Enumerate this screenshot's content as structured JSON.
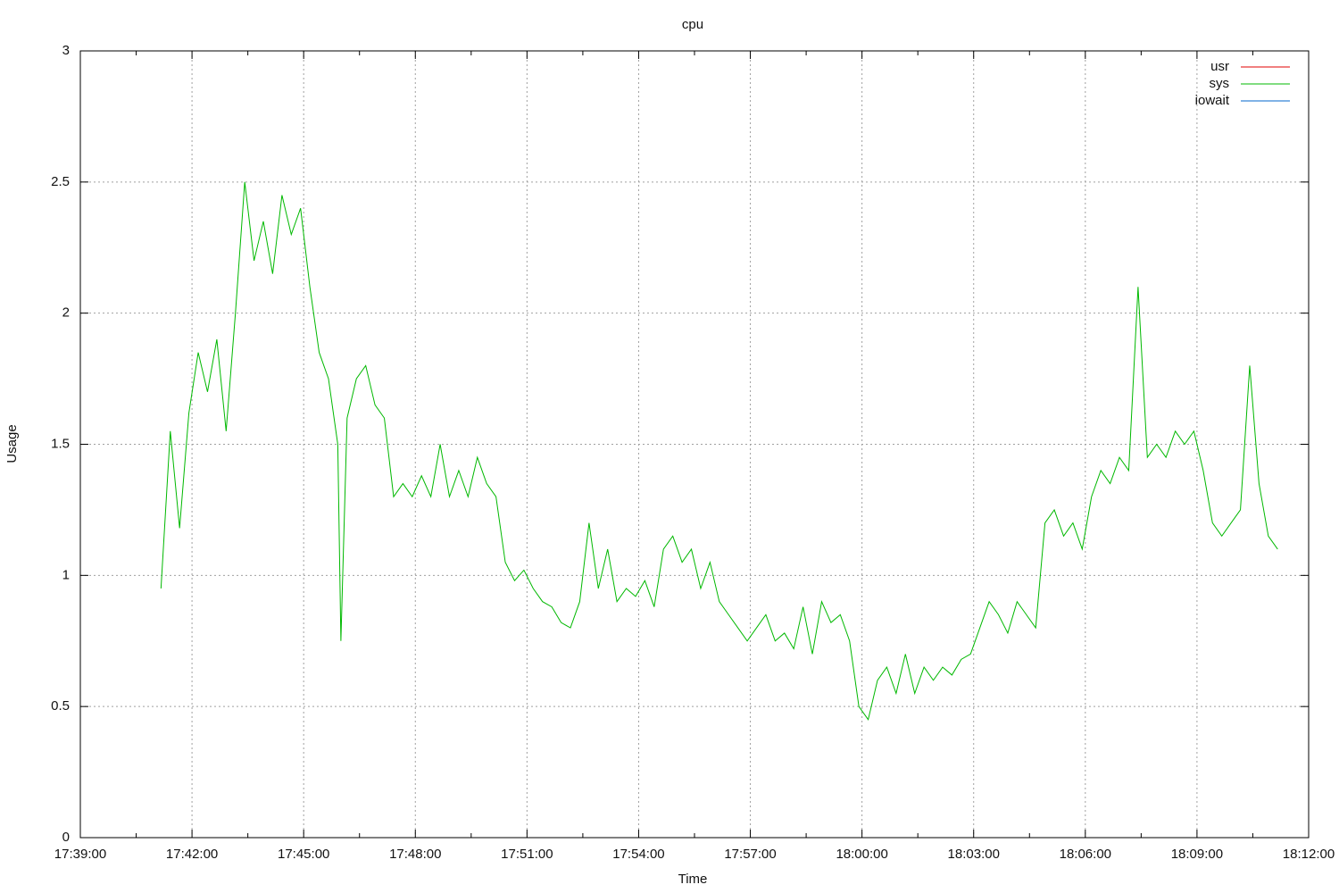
{
  "chart_data": {
    "type": "line",
    "title": "cpu",
    "x_label": "Time",
    "y_label": "Usage",
    "x": [
      "17:41:10",
      "17:41:25",
      "17:41:40",
      "17:41:55",
      "17:42:10",
      "17:42:25",
      "17:42:40",
      "17:42:55",
      "17:43:10",
      "17:43:25",
      "17:43:40",
      "17:43:55",
      "17:44:10",
      "17:44:25",
      "17:44:40",
      "17:44:55",
      "17:45:10",
      "17:45:25",
      "17:45:40",
      "17:45:55",
      "17:46:00",
      "17:46:10",
      "17:46:25",
      "17:46:40",
      "17:46:55",
      "17:47:10",
      "17:47:25",
      "17:47:40",
      "17:47:55",
      "17:48:10",
      "17:48:25",
      "17:48:40",
      "17:48:55",
      "17:49:10",
      "17:49:25",
      "17:49:40",
      "17:49:55",
      "17:50:10",
      "17:50:25",
      "17:50:40",
      "17:50:55",
      "17:51:10",
      "17:51:25",
      "17:51:40",
      "17:51:55",
      "17:52:10",
      "17:52:25",
      "17:52:40",
      "17:52:55",
      "17:53:10",
      "17:53:25",
      "17:53:40",
      "17:53:55",
      "17:54:10",
      "17:54:25",
      "17:54:40",
      "17:54:55",
      "17:55:10",
      "17:55:25",
      "17:55:40",
      "17:55:55",
      "17:56:10",
      "17:56:25",
      "17:56:40",
      "17:56:55",
      "17:57:10",
      "17:57:25",
      "17:57:40",
      "17:57:55",
      "17:58:10",
      "17:58:25",
      "17:58:40",
      "17:58:55",
      "17:59:10",
      "17:59:25",
      "17:59:40",
      "17:59:55",
      "18:00:10",
      "18:00:25",
      "18:00:40",
      "18:00:55",
      "18:01:10",
      "18:01:25",
      "18:01:40",
      "18:01:55",
      "18:02:10",
      "18:02:25",
      "18:02:40",
      "18:02:55",
      "18:03:10",
      "18:03:25",
      "18:03:40",
      "18:03:55",
      "18:04:10",
      "18:04:25",
      "18:04:40",
      "18:04:55",
      "18:05:10",
      "18:05:25",
      "18:05:40",
      "18:05:55",
      "18:06:10",
      "18:06:25",
      "18:06:40",
      "18:06:55",
      "18:07:10",
      "18:07:25",
      "18:07:40",
      "18:07:55",
      "18:08:10",
      "18:08:25",
      "18:08:40",
      "18:08:55",
      "18:09:10",
      "18:09:25",
      "18:09:40",
      "18:09:55",
      "18:10:10",
      "18:10:25",
      "18:10:40",
      "18:10:55",
      "18:11:10"
    ],
    "series": [
      {
        "name": "usr",
        "color": "#e00000",
        "values": [
          null,
          null,
          null,
          null,
          null,
          null,
          null,
          null,
          null,
          null,
          null,
          null,
          null,
          null,
          null,
          null,
          null,
          null,
          null,
          null,
          null,
          null,
          null,
          null,
          null,
          null,
          null,
          null,
          null,
          null,
          null,
          null,
          null,
          null,
          null,
          null,
          null,
          null,
          null,
          null,
          null,
          null,
          null,
          null,
          null,
          null,
          null,
          null,
          null,
          null,
          null,
          null,
          null,
          null,
          null,
          null,
          null,
          null,
          null,
          null,
          null,
          null,
          null,
          null,
          null,
          null,
          null,
          null,
          null,
          null,
          null,
          null,
          null,
          null,
          null,
          null,
          null,
          null,
          null,
          null,
          null,
          null,
          null,
          null,
          null,
          null,
          null,
          null,
          null,
          null,
          null,
          null,
          null,
          null,
          null,
          null,
          null,
          null,
          null,
          null,
          null,
          null,
          null,
          null,
          null,
          null,
          null,
          null,
          null,
          null,
          null,
          null,
          null,
          null,
          null,
          null,
          null,
          null,
          null,
          null,
          null,
          null
        ]
      },
      {
        "name": "sys",
        "color": "#00b800",
        "values": [
          0.95,
          1.55,
          1.18,
          1.62,
          1.85,
          1.7,
          1.9,
          1.55,
          2.0,
          2.5,
          2.2,
          2.35,
          2.15,
          2.45,
          2.3,
          2.4,
          2.1,
          1.85,
          1.75,
          1.5,
          0.75,
          1.6,
          1.75,
          1.8,
          1.65,
          1.6,
          1.3,
          1.35,
          1.3,
          1.38,
          1.3,
          1.5,
          1.3,
          1.4,
          1.3,
          1.45,
          1.35,
          1.3,
          1.05,
          0.98,
          1.02,
          0.95,
          0.9,
          0.88,
          0.82,
          0.8,
          0.9,
          1.2,
          0.95,
          1.1,
          0.9,
          0.95,
          0.92,
          0.98,
          0.88,
          1.1,
          1.15,
          1.05,
          1.1,
          0.95,
          1.05,
          0.9,
          0.85,
          0.8,
          0.75,
          0.8,
          0.85,
          0.75,
          0.78,
          0.72,
          0.88,
          0.7,
          0.9,
          0.82,
          0.85,
          0.75,
          0.5,
          0.45,
          0.6,
          0.65,
          0.55,
          0.7,
          0.55,
          0.65,
          0.6,
          0.65,
          0.62,
          0.68,
          0.7,
          0.8,
          0.9,
          0.85,
          0.78,
          0.9,
          0.85,
          0.8,
          1.2,
          1.25,
          1.15,
          1.2,
          1.1,
          1.3,
          1.4,
          1.35,
          1.45,
          1.4,
          2.1,
          1.45,
          1.5,
          1.45,
          1.55,
          1.5,
          1.55,
          1.4,
          1.2,
          1.15,
          1.2,
          1.25,
          1.8,
          1.35,
          1.15,
          1.1
        ]
      },
      {
        "name": "iowait",
        "color": "#0066cc",
        "values": [
          null,
          null,
          null,
          null,
          null,
          null,
          null,
          null,
          null,
          null,
          null,
          null,
          null,
          null,
          null,
          null,
          null,
          null,
          null,
          null,
          null,
          null,
          null,
          null,
          null,
          null,
          null,
          null,
          null,
          null,
          null,
          null,
          null,
          null,
          null,
          null,
          null,
          null,
          null,
          null,
          null,
          null,
          null,
          null,
          null,
          null,
          null,
          null,
          null,
          null,
          null,
          null,
          null,
          null,
          null,
          null,
          null,
          null,
          null,
          null,
          null,
          null,
          null,
          null,
          null,
          null,
          null,
          null,
          null,
          null,
          null,
          null,
          null,
          null,
          null,
          null,
          null,
          null,
          null,
          null,
          null,
          null,
          null,
          null,
          null,
          null,
          null,
          null,
          null,
          null,
          null,
          null,
          null,
          null,
          null,
          null,
          null,
          null,
          null,
          null,
          null,
          null,
          null,
          null,
          null,
          null,
          null,
          null,
          null,
          null,
          null,
          null,
          null,
          null,
          null,
          null,
          null,
          null,
          null,
          null,
          null,
          null
        ]
      }
    ],
    "xlim": [
      "17:39:00",
      "18:12:00"
    ],
    "xticks": [
      "17:39:00",
      "17:42:00",
      "17:45:00",
      "17:48:00",
      "17:51:00",
      "17:54:00",
      "17:57:00",
      "18:00:00",
      "18:03:00",
      "18:06:00",
      "18:09:00",
      "18:12:00"
    ],
    "ylim": [
      0,
      3
    ],
    "yticks": [
      0,
      0.5,
      1,
      1.5,
      2,
      2.5,
      3
    ],
    "grid": true,
    "legend": "top-right"
  }
}
